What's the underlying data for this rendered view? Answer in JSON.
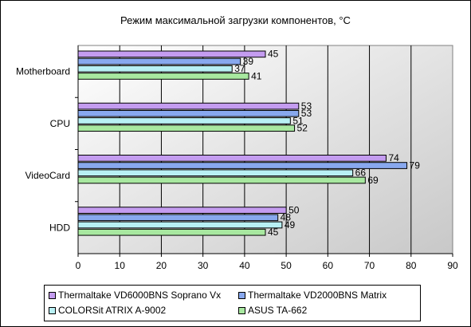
{
  "chart_data": {
    "type": "bar",
    "orientation": "horizontal",
    "title": "Режим максимальной загрузки компонентов, °С",
    "categories": [
      "Motherboard",
      "CPU",
      "VideoCard",
      "HDD"
    ],
    "series": [
      {
        "name": "Thermaltake VD6000BNS Soprano Vx",
        "color": "#c49cf0",
        "values": [
          45,
          53,
          74,
          50
        ]
      },
      {
        "name": "Thermaltake VD2000BNS Matrix",
        "color": "#88a8ee",
        "values": [
          39,
          53,
          79,
          48
        ]
      },
      {
        "name": "COLORSit ATRIX A-9002",
        "color": "#b8f0f4",
        "values": [
          37,
          51,
          66,
          49
        ]
      },
      {
        "name": "ASUS TA-662",
        "color": "#a8e8a0",
        "values": [
          41,
          52,
          69,
          45
        ]
      }
    ],
    "xlim": [
      0,
      90
    ],
    "xticks": [
      "0",
      "10",
      "20",
      "30",
      "40",
      "50",
      "60",
      "70",
      "80",
      "90"
    ],
    "grid": true,
    "legend_position": "bottom",
    "plot_background": "gradient-white-to-grey"
  }
}
